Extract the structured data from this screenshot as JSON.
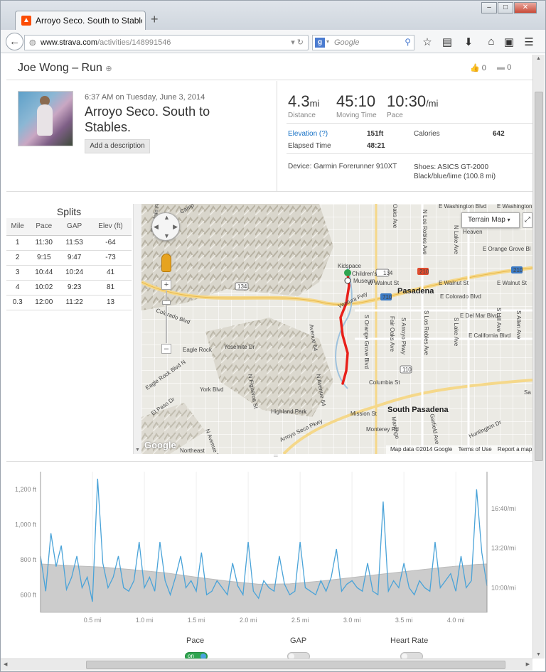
{
  "browser": {
    "tab_title": "Arroyo Seco. South to Stables. ...",
    "url_host": "www.strava.com",
    "url_path": "/activities/148991546",
    "search_placeholder": "Google"
  },
  "header": {
    "athlete_activity": "Joe Wong – Run",
    "kudos_count": "0",
    "comment_count": "0"
  },
  "activity": {
    "datetime": "6:37 AM on Tuesday, June 3, 2014",
    "title": "Arroyo Seco. South to Stables.",
    "add_description": "Add a description"
  },
  "stats": {
    "distance_value": "4.3",
    "distance_unit": "mi",
    "distance_label": "Distance",
    "moving_time_value": "45:10",
    "moving_time_label": "Moving Time",
    "pace_value": "10:30",
    "pace_unit": "/mi",
    "pace_label": "Pace"
  },
  "details": {
    "elevation_label": "Elevation (?)",
    "elevation_value": "151ft",
    "calories_label": "Calories",
    "calories_value": "642",
    "elapsed_label": "Elapsed Time",
    "elapsed_value": "48:21",
    "device": "Device: Garmin Forerunner 910XT",
    "shoes": "Shoes: ASICS GT-2000 Black/blue/lime (100.8 mi)"
  },
  "splits": {
    "title": "Splits",
    "columns": [
      "Mile",
      "Pace",
      "GAP",
      "Elev (ft)"
    ],
    "rows": [
      [
        "1",
        "11:30",
        "11:53",
        "-64"
      ],
      [
        "2",
        "9:15",
        "9:47",
        "-73"
      ],
      [
        "3",
        "10:44",
        "10:24",
        "41"
      ],
      [
        "4",
        "10:02",
        "9:23",
        "81"
      ],
      [
        "0.3",
        "12:00",
        "11:22",
        "13"
      ]
    ]
  },
  "map": {
    "type_button": "Terrain Map",
    "google": "Google",
    "map_data": "Map data ©2014 Google",
    "terms": "Terms of Use",
    "report": "Report a map",
    "labels": {
      "washington1": "E Washington Blvd",
      "washington2": "E Washington B",
      "orange_grove": "E Orange Grove Bl",
      "walnut1": "W Walnut St",
      "walnut2": "E Walnut St",
      "walnut3": "E Walnut St",
      "colorado": "E Colorado Blvd",
      "delmar": "E Del Mar Blvd",
      "california": "E California Blvd",
      "pasadena": "Pasadena",
      "south_pasadena": "South Pasadena",
      "kidspace": "Kidspace",
      "childrens": "Children's",
      "museum": "Museum",
      "ventura": "Ventura Fwy",
      "columbia": "Columbia St",
      "mission": "Mission St",
      "monterey": "Monterey Rd",
      "highland_park": "Highland Park",
      "arroyo_pkwy": "Arroyo Seco Pkwy",
      "colorado_blvd": "Colorado Blvd",
      "eagle_rock": "Eagle Rock",
      "eagle_rock_blvd": "Eagle Rock Blvd N",
      "yosemite": "Yosemite Dr",
      "york": "York Blvd",
      "el_paso": "El Paso Dr",
      "figueroa": "N Figueroa St",
      "ave50": "N Avenue 50",
      "ave64": "N Avenue 64",
      "avenue64": "Avenue 64",
      "glendale": "Glendale Fwy",
      "camp": "Camp",
      "heaven": "Heaven",
      "northeast": "Northeast",
      "huntington": "Huntington Dr",
      "orange_grove_blvd": "S Orange Grove Blvd",
      "fair_oaks": "Fair Oaks Ave",
      "arroyo_pkwy2": "S Arroyo Pkwy",
      "los_robles": "S Los Robles Ave",
      "los_robles_n": "N Los Robles Ave",
      "lake": "N Lake Ave",
      "hill": "S Hill Ave",
      "allen": "S Allen Ave",
      "garfield": "Garfield Ave",
      "marengo": "Marengo",
      "s_lake": "S Lake Ave",
      "hwy134a": "134",
      "hwy134b": "134",
      "hwy210a": "210",
      "hwy210b": "210",
      "hwy710": "710",
      "hwy110": "110",
      "oaks": "Oaks Ave",
      "sa": "Sa"
    }
  },
  "chart_data": {
    "type": "area",
    "x_ticks": [
      "0.5 mi",
      "1.0 mi",
      "1.5 mi",
      "2.0 mi",
      "2.5 mi",
      "3.0 mi",
      "3.5 mi",
      "4.0 mi"
    ],
    "y_left_ticks": [
      "1,200 ft",
      "1,000 ft",
      "800 ft",
      "600 ft"
    ],
    "y_right_ticks": [
      "16:40/mi",
      "13:20/mi",
      "10:00/mi"
    ],
    "xlim": [
      0,
      4.3
    ],
    "series": [
      {
        "name": "Elevation",
        "unit": "ft",
        "x": [
          0,
          0.3,
          0.6,
          0.9,
          1.2,
          1.5,
          1.8,
          2.1,
          2.4,
          2.7,
          3.0,
          3.3,
          3.6,
          3.9,
          4.2,
          4.3
        ],
        "y": [
          775,
          765,
          757,
          742,
          725,
          700,
          678,
          660,
          662,
          678,
          698,
          718,
          738,
          757,
          772,
          775
        ]
      },
      {
        "name": "Pace",
        "unit": "ft-equivalent",
        "x": [
          0.0,
          0.05,
          0.1,
          0.15,
          0.2,
          0.25,
          0.3,
          0.35,
          0.4,
          0.45,
          0.5,
          0.55,
          0.6,
          0.65,
          0.7,
          0.75,
          0.8,
          0.85,
          0.9,
          0.95,
          1.0,
          1.05,
          1.1,
          1.15,
          1.2,
          1.25,
          1.3,
          1.35,
          1.4,
          1.45,
          1.5,
          1.55,
          1.6,
          1.65,
          1.7,
          1.75,
          1.8,
          1.85,
          1.9,
          1.95,
          2.0,
          2.05,
          2.1,
          2.15,
          2.2,
          2.25,
          2.3,
          2.35,
          2.4,
          2.45,
          2.5,
          2.55,
          2.6,
          2.65,
          2.7,
          2.75,
          2.8,
          2.85,
          2.9,
          2.95,
          3.0,
          3.05,
          3.1,
          3.15,
          3.2,
          3.25,
          3.3,
          3.35,
          3.4,
          3.45,
          3.5,
          3.55,
          3.6,
          3.65,
          3.7,
          3.75,
          3.8,
          3.85,
          3.9,
          3.95,
          4.0,
          4.05,
          4.1,
          4.15,
          4.2,
          4.25,
          4.3
        ],
        "y": [
          820,
          620,
          950,
          760,
          880,
          630,
          700,
          820,
          640,
          700,
          560,
          1260,
          780,
          640,
          700,
          820,
          640,
          620,
          680,
          900,
          640,
          700,
          620,
          900,
          680,
          600,
          700,
          820,
          640,
          680,
          620,
          840,
          600,
          620,
          680,
          640,
          600,
          780,
          650,
          600,
          900,
          620,
          580,
          680,
          640,
          620,
          820,
          660,
          600,
          620,
          900,
          640,
          620,
          600,
          680,
          620,
          700,
          860,
          620,
          660,
          680,
          640,
          620,
          780,
          620,
          600,
          1130,
          620,
          680,
          640,
          780,
          640,
          600,
          680,
          640,
          620,
          900,
          640,
          680,
          720,
          620,
          820,
          640,
          680,
          1200,
          840,
          650
        ]
      }
    ]
  },
  "legend": {
    "pace": "Pace",
    "gap": "GAP",
    "heart_rate": "Heart Rate",
    "on": "on"
  },
  "colors": {
    "strava_orange": "#fc4c02",
    "pace_line": "#4aa3d8",
    "elevation_fill": "#cccccc",
    "route": "#e8201a"
  }
}
